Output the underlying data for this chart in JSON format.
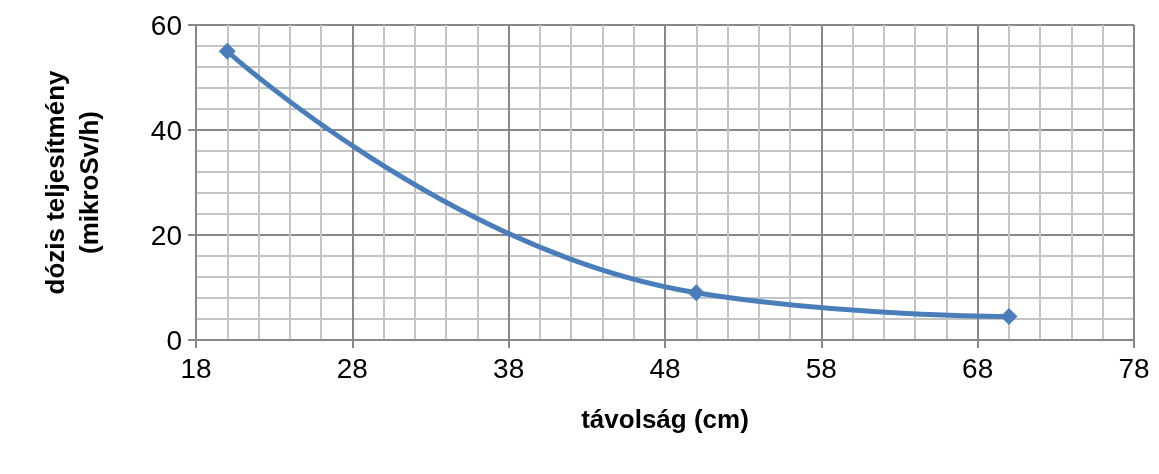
{
  "chart_data": {
    "type": "line",
    "xlabel": "távolság (cm)",
    "ylabel": "dózis teljesítmény\n(mikroSv/h)",
    "x": [
      20,
      50,
      70
    ],
    "series": [
      {
        "color": "#4a7ebb",
        "values": [
          55,
          9,
          4.5
        ]
      }
    ],
    "xlim": [
      18,
      78
    ],
    "xticks": [
      18,
      28,
      38,
      48,
      58,
      68,
      78
    ],
    "ylim": [
      0,
      60
    ],
    "yticks": [
      0,
      20,
      40,
      60
    ],
    "grid": true,
    "marker": "diamond",
    "line_style": "solid"
  }
}
